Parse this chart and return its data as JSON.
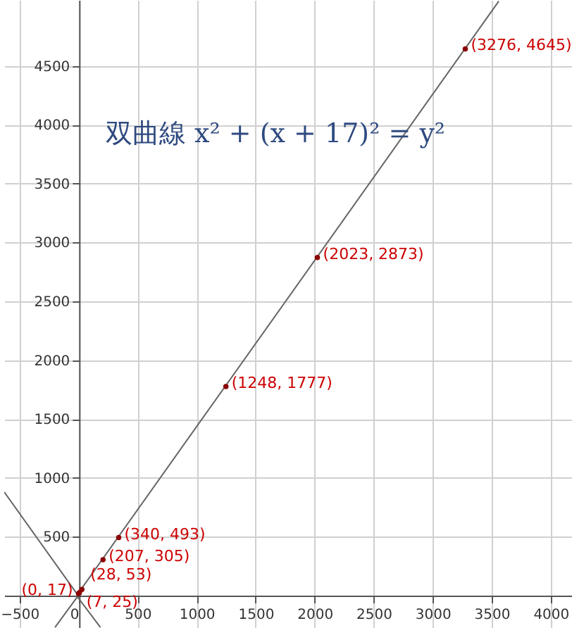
{
  "chart_data": {
    "type": "scatter",
    "title": "双曲線 x² + (x + 17)² = y²",
    "xlim": [
      -630,
      4180
    ],
    "ylim": [
      -275,
      5060
    ],
    "xticks": [
      -500,
      0,
      500,
      1000,
      1500,
      2000,
      2500,
      3000,
      3500,
      4000
    ],
    "yticks": [
      500,
      1000,
      1500,
      2000,
      2500,
      3000,
      3500,
      4000,
      4500
    ],
    "grid": true,
    "series": [
      {
        "type": "line",
        "color": "#666666",
        "x": [
          -630,
          -10,
          3560
        ],
        "values": [
          880,
          10,
          5050
        ]
      },
      {
        "type": "line",
        "color": "#666666",
        "x": [
          -200,
          -10,
          185
        ],
        "values": [
          -270,
          -10,
          -270
        ]
      },
      {
        "marker": "circle",
        "color": "#8b0000",
        "x": [
          0,
          7,
          28,
          207,
          340,
          1248,
          2023,
          3276
        ],
        "values": [
          17,
          25,
          53,
          305,
          493,
          1777,
          2873,
          4645
        ],
        "value_labels": [
          "(0, 17)",
          "(7, 25)",
          "(28, 53)",
          "(207, 305)",
          "(340, 493)",
          "(1248, 1777)",
          "(2023, 2873)",
          "(3276, 4645)"
        ]
      }
    ]
  }
}
